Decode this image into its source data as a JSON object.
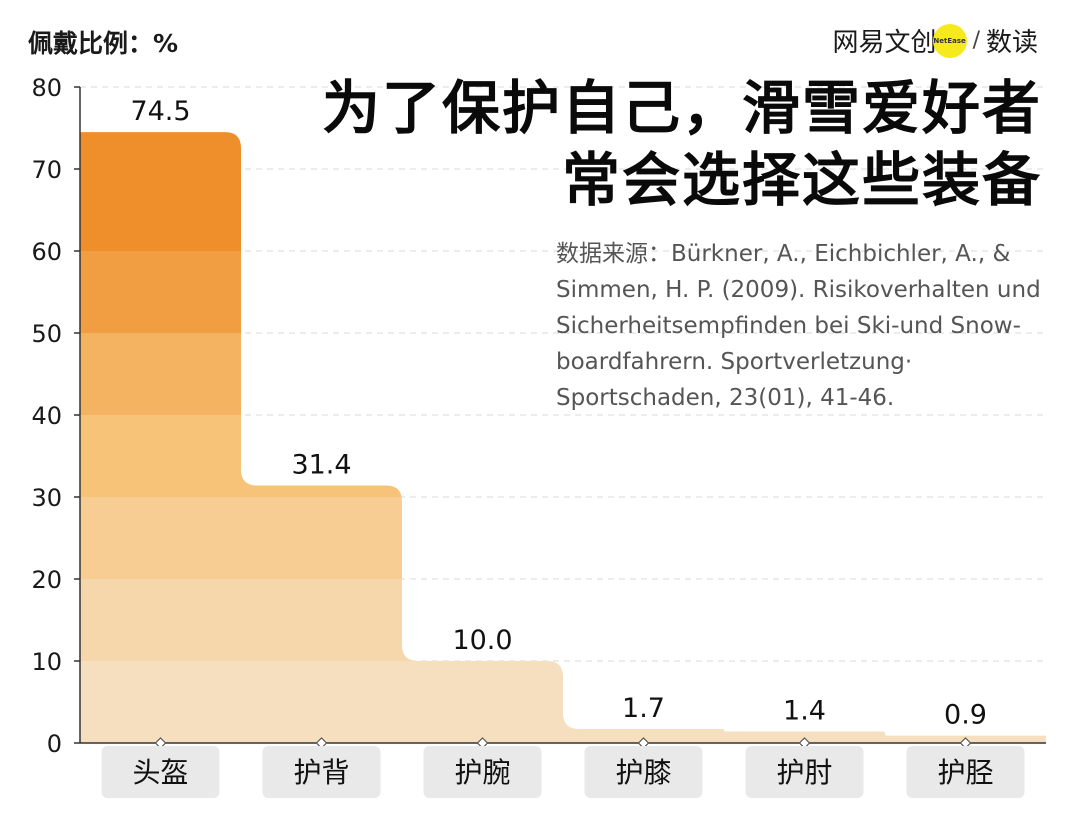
{
  "header": {
    "unit_label": "佩戴比例：%",
    "brand_main": "网易文创",
    "brand_badge": "NetEase",
    "brand_sub": "数读"
  },
  "title_lines": [
    "为了保护自己，滑雪爱好者",
    "常会选择这些装备"
  ],
  "source": "数据来源：Bürkner, A., Eichbichler, A., &\nSimmen, H. P. (2009). Risikoverhalten und\nSicherheitsempfinden bei Ski-und Snow-\nboardfahrern. Sportverletzung·\nSportschaden, 23(01), 41-46.",
  "colors": {
    "band_colors": [
      "#f6dfbf",
      "#f6d6ab",
      "#f7cd94",
      "#f6c379",
      "#f3b361",
      "#f09e41",
      "#ee8f2c",
      "#ee8f2c"
    ],
    "label_bg": "#e9e9e9",
    "axis": "#333333",
    "grid": "#d8d8d8"
  },
  "chart_data": {
    "type": "bar",
    "categories": [
      "头盔",
      "护背",
      "护腕",
      "护膝",
      "护肘",
      "护胫"
    ],
    "values": [
      74.5,
      31.4,
      10.0,
      1.7,
      1.4,
      0.9
    ],
    "value_labels": [
      "74.5",
      "31.4",
      "10.0",
      "1.7",
      "1.4",
      "0.9"
    ],
    "ylabel": "佩戴比例：%",
    "ylim": [
      0,
      80
    ],
    "yticks": [
      0,
      10,
      20,
      30,
      40,
      50,
      60,
      70,
      80
    ],
    "grid": true,
    "title": "为了保护自己，滑雪爱好者常会选择这些装备"
  }
}
